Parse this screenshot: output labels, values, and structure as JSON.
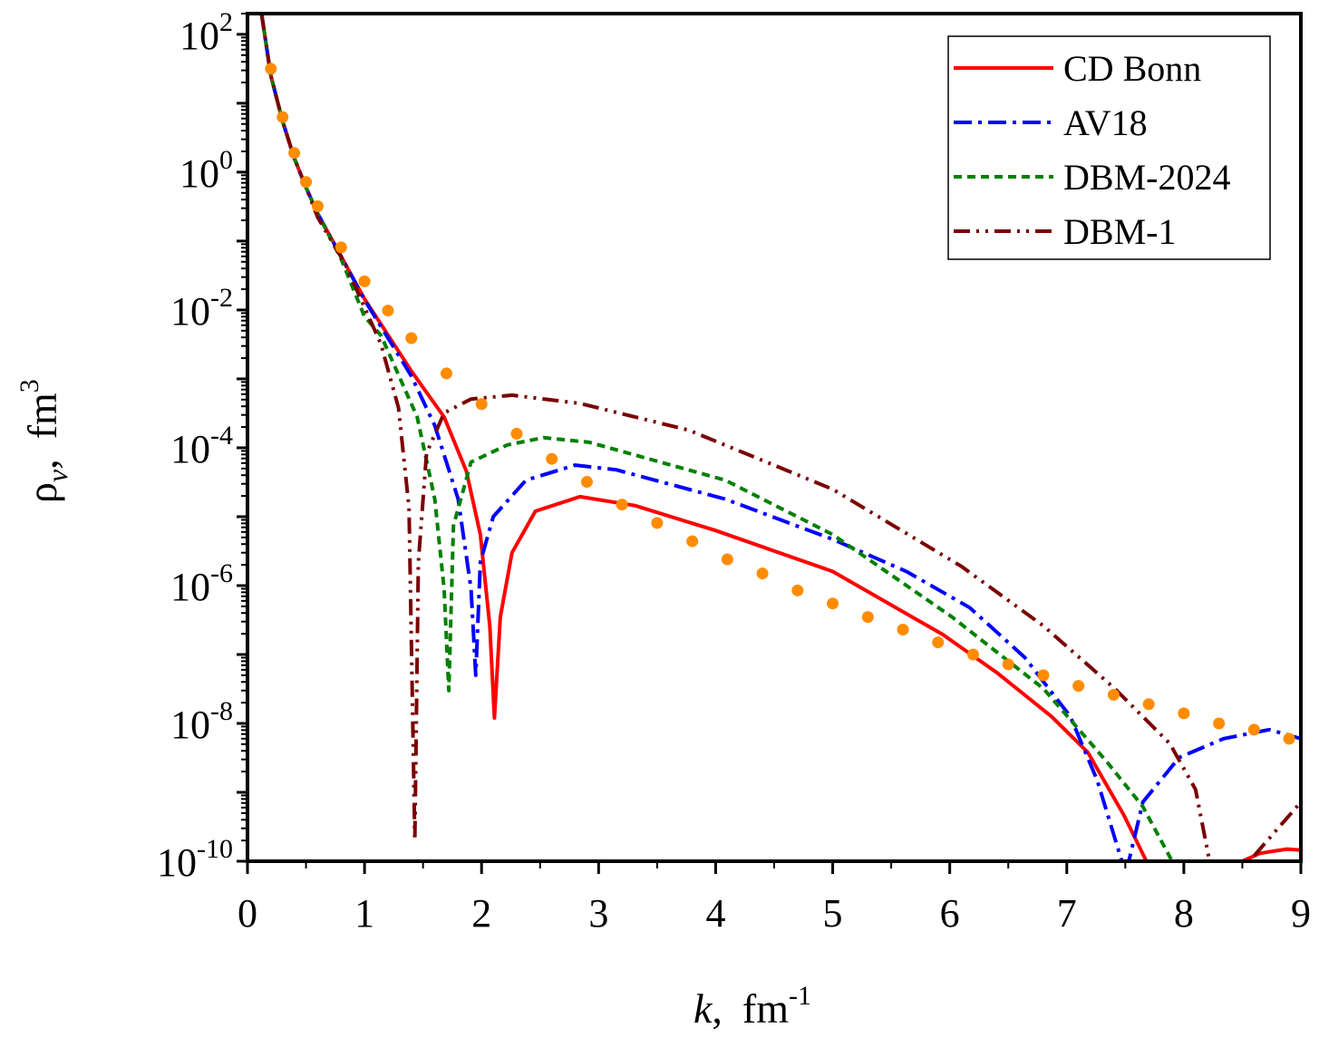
{
  "chart_data": {
    "type": "line",
    "xlabel": {
      "var": "k",
      "sep": ",",
      "unit": "fm",
      "unit_exp": "-1"
    },
    "ylabel": {
      "var": "ρ",
      "sub": "ν",
      "sep": ",",
      "unit": "fm",
      "unit_exp": "3"
    },
    "xlim": [
      0,
      9
    ],
    "ylim": [
      1e-10,
      200
    ],
    "yscale": "log",
    "grid": false,
    "legend_position": "top-right",
    "x_ticks": [
      "0",
      "1",
      "2",
      "3",
      "4",
      "5",
      "6",
      "7",
      "8",
      "9"
    ],
    "y_ticks": [
      {
        "base": "10",
        "exp": "2",
        "v": 2
      },
      {
        "base": "10",
        "exp": "0",
        "v": 0
      },
      {
        "base": "10",
        "exp": "-2",
        "v": -2
      },
      {
        "base": "10",
        "exp": "-4",
        "v": -4
      },
      {
        "base": "10",
        "exp": "-6",
        "v": -6
      },
      {
        "base": "10",
        "exp": "-8",
        "v": -8
      },
      {
        "base": "10",
        "exp": "-10",
        "v": -10
      }
    ],
    "series": [
      {
        "name": "CD Bonn",
        "color": "#ff0000",
        "style": "solid",
        "points": [
          [
            0.12,
            200
          ],
          [
            0.2,
            25
          ],
          [
            0.3,
            5.5
          ],
          [
            0.4,
            1.6
          ],
          [
            0.5,
            0.6
          ],
          [
            0.6,
            0.25
          ],
          [
            0.8,
            0.06
          ],
          [
            1.0,
            0.0145
          ],
          [
            1.4,
            0.0013
          ],
          [
            1.68,
            0.00028
          ],
          [
            1.87,
            4.6e-05
          ],
          [
            1.99,
            5.5e-06
          ],
          [
            2.07,
            2.6e-07
          ],
          [
            2.11,
            1.2e-08
          ],
          [
            2.16,
            3.5e-07
          ],
          [
            2.26,
            3e-06
          ],
          [
            2.46,
            1.2e-05
          ],
          [
            2.84,
            1.95e-05
          ],
          [
            3.31,
            1.45e-05
          ],
          [
            4.0,
            6.3e-06
          ],
          [
            5.0,
            1.6e-06
          ],
          [
            5.94,
            1.95e-07
          ],
          [
            6.4,
            5.5e-08
          ],
          [
            6.87,
            1.26e-08
          ],
          [
            7.18,
            3.8e-09
          ],
          [
            7.49,
            4.6e-10
          ],
          [
            7.68,
            1e-10
          ],
          null,
          [
            8.5,
            1e-10
          ],
          [
            8.65,
            1.3e-10
          ],
          [
            8.88,
            1.5e-10
          ],
          [
            9,
            1.45e-10
          ]
        ]
      },
      {
        "name": "AV18",
        "color": "#0000ff",
        "style": "dashdot",
        "points": [
          [
            0.12,
            200
          ],
          [
            0.2,
            25
          ],
          [
            0.3,
            5.5
          ],
          [
            0.4,
            1.6
          ],
          [
            0.5,
            0.6
          ],
          [
            0.6,
            0.25
          ],
          [
            0.8,
            0.06
          ],
          [
            1.0,
            0.014
          ],
          [
            1.4,
            0.0011
          ],
          [
            1.6,
            0.00021
          ],
          [
            1.8,
            1.8e-05
          ],
          [
            1.91,
            9e-07
          ],
          [
            1.95,
            5e-08
          ],
          [
            1.99,
            2.2e-06
          ],
          [
            2.1,
            1e-05
          ],
          [
            2.38,
            3.4e-05
          ],
          [
            2.8,
            5.6e-05
          ],
          [
            3.15,
            4.8e-05
          ],
          [
            4.08,
            1.8e-05
          ],
          [
            5.0,
            4.7e-06
          ],
          [
            5.63,
            1.6e-06
          ],
          [
            6.17,
            4.8e-07
          ],
          [
            6.64,
            9.1e-08
          ],
          [
            7.03,
            1.26e-08
          ],
          [
            7.26,
            1.5e-09
          ],
          [
            7.47,
            1e-10
          ],
          [
            7.53,
            1e-10
          ],
          [
            7.65,
            7.2e-10
          ],
          [
            7.96,
            3.2e-09
          ],
          [
            8.34,
            6e-09
          ],
          [
            8.73,
            8.1e-09
          ],
          [
            9,
            6e-09
          ]
        ]
      },
      {
        "name": "DBM-2024",
        "color": "#008000",
        "style": "dash",
        "points": [
          [
            0.12,
            200
          ],
          [
            0.2,
            25
          ],
          [
            0.3,
            5.5
          ],
          [
            0.4,
            1.6
          ],
          [
            0.5,
            0.6
          ],
          [
            0.6,
            0.25
          ],
          [
            0.8,
            0.055
          ],
          [
            1.0,
            0.008
          ],
          [
            1.14,
            0.0043
          ],
          [
            1.45,
            0.00028
          ],
          [
            1.6,
            1.8e-05
          ],
          [
            1.68,
            8.9e-07
          ],
          [
            1.72,
            3e-08
          ],
          [
            1.76,
            7.4e-06
          ],
          [
            1.91,
            6.2e-05
          ],
          [
            2.22,
            0.00011
          ],
          [
            2.53,
            0.00014
          ],
          [
            2.92,
            0.00012
          ],
          [
            4.08,
            3.4e-05
          ],
          [
            5.0,
            5.5e-06
          ],
          [
            6.02,
            3.5e-07
          ],
          [
            6.8,
            3.2e-08
          ],
          [
            7.34,
            2.8e-09
          ],
          [
            7.65,
            6.2e-10
          ],
          [
            7.9,
            1e-10
          ]
        ]
      },
      {
        "name": "DBM-1",
        "color": "#7b0000",
        "style": "dashdotdot",
        "points": [
          [
            0.12,
            200
          ],
          [
            0.2,
            25
          ],
          [
            0.3,
            5.5
          ],
          [
            0.4,
            1.6
          ],
          [
            0.5,
            0.6
          ],
          [
            0.6,
            0.22
          ],
          [
            0.83,
            0.048
          ],
          [
            1.14,
            0.0032
          ],
          [
            1.29,
            0.00038
          ],
          [
            1.38,
            1.35e-05
          ],
          [
            1.43,
            2e-10
          ],
          [
            1.46,
            2.2e-06
          ],
          [
            1.53,
            8.3e-05
          ],
          [
            1.68,
            0.00032
          ],
          [
            1.91,
            0.00051
          ],
          [
            2.26,
            0.00058
          ],
          [
            2.84,
            0.00044
          ],
          [
            3.77,
            0.00018
          ],
          [
            5.0,
            2.5e-05
          ],
          [
            6.1,
            1.9e-06
          ],
          [
            6.8,
            2.6e-07
          ],
          [
            7.41,
            3.2e-08
          ],
          [
            7.88,
            5.1e-09
          ],
          [
            8.1,
            1.1e-09
          ],
          [
            8.22,
            1e-10
          ],
          null,
          [
            8.6,
            1.2e-10
          ],
          [
            9,
            7.2e-10
          ]
        ]
      }
    ],
    "markers": {
      "color": "#ff8c00",
      "points": [
        [
          0.2,
          31.6
        ],
        [
          0.3,
          6.3
        ],
        [
          0.4,
          1.9
        ],
        [
          0.5,
          0.72
        ],
        [
          0.6,
          0.32
        ],
        [
          0.8,
          0.081
        ],
        [
          1.0,
          0.026
        ],
        [
          1.2,
          0.0098
        ],
        [
          1.4,
          0.0039
        ],
        [
          1.7,
          0.0012
        ],
        [
          2.0,
          0.00043
        ],
        [
          2.3,
          0.00016
        ],
        [
          2.6,
          6.9e-05
        ],
        [
          2.9,
          3.2e-05
        ],
        [
          3.2,
          1.5e-05
        ],
        [
          3.5,
          8.1e-06
        ],
        [
          3.8,
          4.4e-06
        ],
        [
          4.1,
          2.4e-06
        ],
        [
          4.4,
          1.5e-06
        ],
        [
          4.7,
          8.5e-07
        ],
        [
          5.0,
          5.5e-07
        ],
        [
          5.3,
          3.5e-07
        ],
        [
          5.6,
          2.3e-07
        ],
        [
          5.9,
          1.5e-07
        ],
        [
          6.2,
          1e-07
        ],
        [
          6.5,
          7.2e-08
        ],
        [
          6.8,
          5e-08
        ],
        [
          7.1,
          3.5e-08
        ],
        [
          7.4,
          2.6e-08
        ],
        [
          7.7,
          1.9e-08
        ],
        [
          8.0,
          1.4e-08
        ],
        [
          8.3,
          1e-08
        ],
        [
          8.6,
          8.1e-09
        ],
        [
          8.9,
          6e-09
        ]
      ]
    }
  }
}
